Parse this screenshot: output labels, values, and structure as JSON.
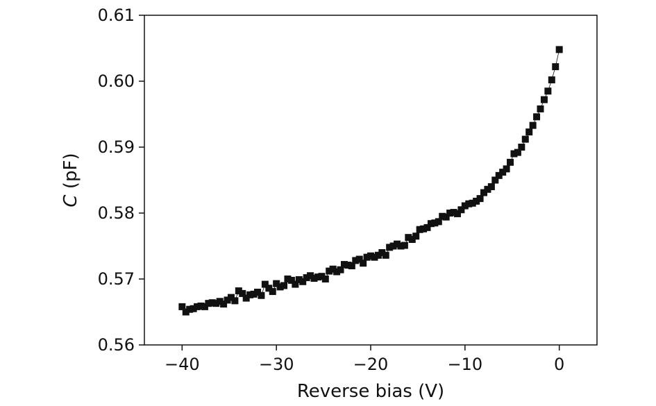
{
  "chart_data": {
    "type": "scatter",
    "title": "",
    "xlabel": "Reverse bias (V)",
    "ylabel": {
      "symbol": "C",
      "unit": " (pF)"
    },
    "xlim": [
      -44,
      4
    ],
    "ylim": [
      0.56,
      0.61
    ],
    "xticks": [
      -40,
      -30,
      -20,
      -10,
      0
    ],
    "xtick_labels": [
      "−40",
      "−30",
      "−20",
      "−10",
      "0"
    ],
    "yticks": [
      0.56,
      0.57,
      0.58,
      0.59,
      0.6,
      0.61
    ],
    "ytick_labels": [
      "0.56",
      "0.57",
      "0.58",
      "0.59",
      "0.60",
      "0.61"
    ],
    "grid": false,
    "marker": "square",
    "marker_color": "#111111",
    "connecting_line": true,
    "series": [
      {
        "x": [
          -40.0,
          -39.6,
          -39.2,
          -38.8,
          -38.4,
          -38.0,
          -37.6,
          -37.2,
          -36.8,
          -36.4,
          -36.0,
          -35.6,
          -35.2,
          -34.8,
          -34.4,
          -34.0,
          -33.6,
          -33.2,
          -32.8,
          -32.4,
          -32.0,
          -31.6,
          -31.2,
          -30.8,
          -30.4,
          -30.0,
          -29.6,
          -29.2,
          -28.8,
          -28.4,
          -28.0,
          -27.6,
          -27.2,
          -26.8,
          -26.4,
          -26.0,
          -25.6,
          -25.2,
          -24.8,
          -24.4,
          -24.0,
          -23.6,
          -23.2,
          -22.8,
          -22.4,
          -22.0,
          -21.6,
          -21.2,
          -20.8,
          -20.4,
          -20.0,
          -19.6,
          -19.2,
          -18.8,
          -18.4,
          -18.0,
          -17.6,
          -17.2,
          -16.8,
          -16.4,
          -16.0,
          -15.6,
          -15.2,
          -14.8,
          -14.4,
          -14.0,
          -13.6,
          -13.2,
          -12.8,
          -12.4,
          -12.0,
          -11.6,
          -11.2,
          -10.8,
          -10.4,
          -10.0,
          -9.6,
          -9.2,
          -8.8,
          -8.4,
          -8.0,
          -7.6,
          -7.2,
          -6.8,
          -6.4,
          -6.0,
          -5.6,
          -5.2,
          -4.8,
          -4.4,
          -4.0,
          -3.6,
          -3.2,
          -2.8,
          -2.4,
          -2.0,
          -1.6,
          -1.2,
          -0.8,
          -0.4,
          0.0
        ],
        "y": [
          0.5658,
          0.565,
          0.5654,
          0.5655,
          0.5658,
          0.5659,
          0.5658,
          0.5663,
          0.5664,
          0.5663,
          0.5666,
          0.5662,
          0.5668,
          0.5672,
          0.5667,
          0.5682,
          0.5678,
          0.5671,
          0.5676,
          0.5677,
          0.568,
          0.5675,
          0.5692,
          0.5686,
          0.5681,
          0.5693,
          0.5688,
          0.569,
          0.57,
          0.5698,
          0.5692,
          0.5699,
          0.5696,
          0.5702,
          0.5705,
          0.5701,
          0.5703,
          0.5704,
          0.57,
          0.5712,
          0.5715,
          0.5711,
          0.5714,
          0.5722,
          0.5721,
          0.572,
          0.5728,
          0.573,
          0.5724,
          0.5733,
          0.5735,
          0.5733,
          0.5736,
          0.574,
          0.5736,
          0.5748,
          0.575,
          0.5753,
          0.575,
          0.5751,
          0.5763,
          0.576,
          0.5765,
          0.5775,
          0.5776,
          0.5778,
          0.5784,
          0.5785,
          0.5787,
          0.5795,
          0.5794,
          0.58,
          0.5801,
          0.5799,
          0.5805,
          0.5811,
          0.5814,
          0.5815,
          0.5818,
          0.5822,
          0.5831,
          0.5836,
          0.584,
          0.585,
          0.5857,
          0.5862,
          0.5867,
          0.5877,
          0.589,
          0.5892,
          0.59,
          0.5912,
          0.5923,
          0.5933,
          0.5946,
          0.5958,
          0.5972,
          0.5985,
          0.6002,
          0.6022,
          0.6048
        ]
      }
    ]
  }
}
